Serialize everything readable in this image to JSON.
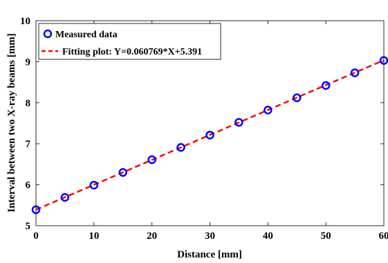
{
  "chart_data": {
    "type": "scatter",
    "xlabel": "Distance [mm]",
    "ylabel": "Interval between two X-ray beams [mm]",
    "xlim": [
      0,
      60
    ],
    "ylim": [
      5,
      10
    ],
    "xticks": [
      0,
      10,
      20,
      30,
      40,
      50,
      60
    ],
    "yticks": [
      5,
      6,
      7,
      8,
      9,
      10
    ],
    "grid": false,
    "legend_position": "top-left",
    "series": [
      {
        "name": "Measured data",
        "kind": "scatter",
        "marker": "circle",
        "color": "#0000ff",
        "x": [
          0,
          5,
          10,
          15,
          20,
          25,
          30,
          35,
          40,
          45,
          50,
          55,
          60
        ],
        "y": [
          5.39,
          5.69,
          5.99,
          6.3,
          6.61,
          6.91,
          7.21,
          7.52,
          7.82,
          8.12,
          8.42,
          8.73,
          9.03
        ]
      },
      {
        "name": "Fitting plot: Y=0.060769*X+5.391",
        "kind": "line",
        "style": "dashed",
        "color": "#ff0000",
        "slope": 0.060769,
        "intercept": 5.391
      }
    ]
  }
}
